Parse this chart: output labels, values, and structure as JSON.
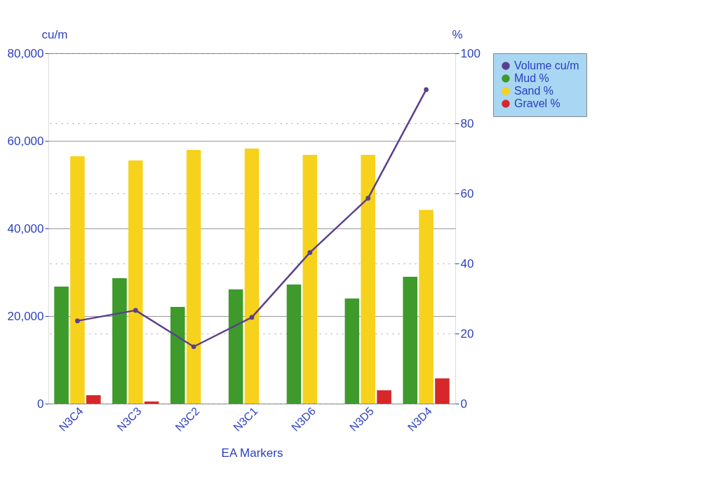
{
  "chart_data": {
    "type": "bar",
    "xlabel": "EA Markers",
    "ylabel": "cu/m",
    "y2label": "%",
    "categories": [
      "N3C4",
      "N3C3",
      "N3C2",
      "N3C1",
      "N3D6",
      "N3D5",
      "N3D4"
    ],
    "series": [
      {
        "name": "Volume cu/m",
        "type": "line",
        "axis": "y",
        "color": "#5b3f8f",
        "values": [
          18900,
          21300,
          13000,
          19700,
          34500,
          46900,
          71700
        ]
      },
      {
        "name": "Mud %",
        "axis": "y2",
        "color": "#3f9a2c",
        "values": [
          33.4,
          35.8,
          27.6,
          32.6,
          34,
          30,
          36.2
        ]
      },
      {
        "name": "Sand %",
        "axis": "y2",
        "color": "#f6d21c",
        "values": [
          70.6,
          69.4,
          72.4,
          72.8,
          71,
          71,
          55.3
        ]
      },
      {
        "name": "Gravel %",
        "axis": "y2",
        "color": "#d6282a",
        "values": [
          2.4,
          0.6,
          0,
          0,
          0,
          3.8,
          7.2
        ]
      }
    ],
    "ylim": [
      0,
      80000
    ],
    "yticks": [
      {
        "value": 0,
        "label": "0"
      },
      {
        "value": 20000,
        "label": "20,000"
      },
      {
        "value": 40000,
        "label": "40,000"
      },
      {
        "value": 60000,
        "label": "60,000"
      },
      {
        "value": 80000,
        "label": "80,000"
      }
    ],
    "y2lim": [
      0,
      100
    ],
    "y2ticks": [
      0,
      20,
      40,
      60,
      80,
      100
    ],
    "grid": true,
    "legend": "right",
    "marker": "circle"
  }
}
